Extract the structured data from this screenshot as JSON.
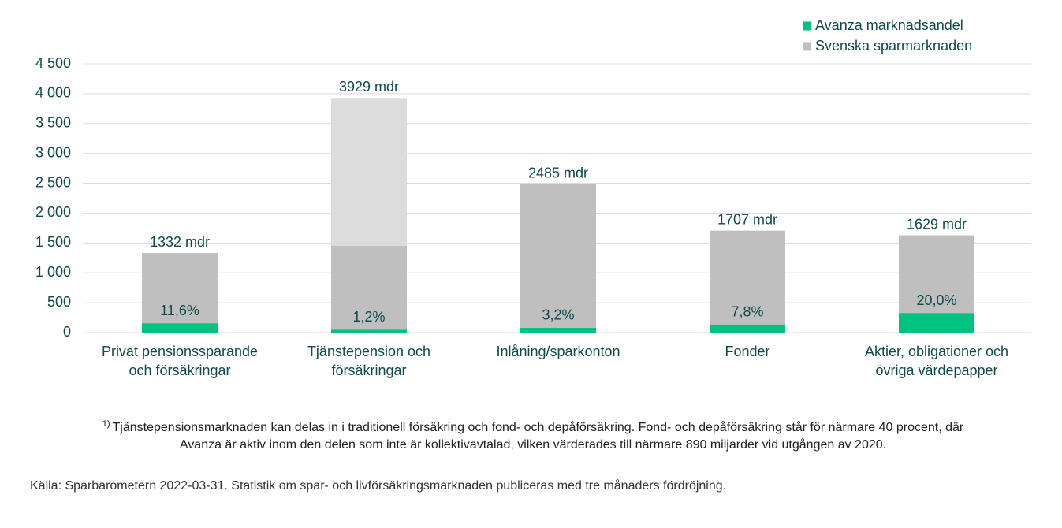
{
  "chart_data": {
    "type": "bar",
    "categories": [
      "Privat pensionssparande\noch försäkringar",
      "Tjänstepension och\nförsäkringar",
      "Inlåning/sparkonton",
      "Fonder",
      "Aktier, obligationer och\növriga värdepapper"
    ],
    "series": [
      {
        "name": "Avanza marknadsandel",
        "color": "#00c281",
        "values": [
          11.6,
          1.2,
          3.2,
          7.8,
          20.0
        ],
        "value_labels": [
          "11,6%",
          "1,2%",
          "3,2%",
          "7,8%",
          "20,0%"
        ]
      },
      {
        "name": "Svenska sparmarknaden",
        "color": "#bfbfbf",
        "values": [
          1332,
          3929,
          2485,
          1707,
          1629
        ],
        "value_labels": [
          "1332 mdr",
          "3929 mdr",
          "2485 mdr",
          "1707 mdr",
          "1629 mdr"
        ]
      }
    ],
    "split_bar": {
      "values": [
        null,
        1450,
        null,
        null,
        null
      ],
      "upper_color": "#dcdcdc"
    },
    "ylim": [
      0,
      4500
    ],
    "yticks": [
      0,
      500,
      {
        "value": 1000,
        "label": "1 000"
      },
      {
        "value": 1500,
        "label": "1 500"
      },
      {
        "value": 2000,
        "label": "2 000"
      },
      {
        "value": 2500,
        "label": "2 500"
      },
      {
        "value": 3000,
        "label": "3 000"
      },
      {
        "value": 3500,
        "label": "3 500"
      },
      {
        "value": 4000,
        "label": "4 000"
      },
      {
        "value": 4500,
        "label": "4 500"
      }
    ],
    "grid": true,
    "legend": "top-right",
    "footnote_marker": "1)",
    "footnote": "Tjänstepensionsmarknaden kan delas in i traditionell försäkring och fond- och depåförsäkring. Fond- och depåförsäkring står för närmare 40 procent, där Avanza är aktiv inom den delen som inte är kollektivavtalad, vilken värderades till närmare 890 miljarder vid utgången av 2020.",
    "source": "Källa: Sparbarometern 2022-03-31. Statistik om spar- och livförsäkringsmarknaden publiceras med tre månaders fördröjning."
  }
}
